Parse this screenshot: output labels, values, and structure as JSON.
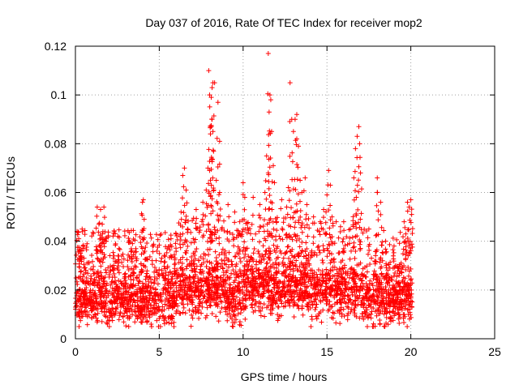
{
  "chart_data": {
    "type": "scatter",
    "title": "Day 037 of 2016, Rate Of TEC Index for receiver mop2",
    "xlabel": "GPS time / hours",
    "ylabel": "ROTI / TECUs",
    "xlim": [
      0,
      25
    ],
    "ylim": [
      0,
      0.12
    ],
    "grid": true,
    "marker": "+",
    "color": "#ff0000",
    "x_ticks": [
      "0",
      "5",
      "10",
      "15",
      "20",
      "25"
    ],
    "y_ticks": [
      "0",
      "0.02",
      "0.04",
      "0.06",
      "0.08",
      "0.1",
      "0.12"
    ],
    "series": [
      {
        "name": "ROTI",
        "base_band": {
          "x_range": [
            0,
            20.1
          ],
          "typical_y_range": [
            0.006,
            0.03
          ],
          "note": "dense cloud of ~0.01-0.025 values throughout the observation period"
        },
        "points": [
          [
            0.1,
            0.044
          ],
          [
            0.2,
            0.041
          ],
          [
            0.25,
            0.036
          ],
          [
            0.3,
            0.035
          ],
          [
            0.4,
            0.045
          ],
          [
            1.3,
            0.054
          ],
          [
            1.4,
            0.047
          ],
          [
            1.5,
            0.053
          ],
          [
            1.6,
            0.047
          ],
          [
            1.7,
            0.054
          ],
          [
            1.5,
            0.041
          ],
          [
            1.7,
            0.039
          ],
          [
            2.3,
            0.034
          ],
          [
            2.6,
            0.037
          ],
          [
            3.4,
            0.039
          ],
          [
            3.6,
            0.037
          ],
          [
            4.0,
            0.056
          ],
          [
            4.05,
            0.057
          ],
          [
            4.1,
            0.049
          ],
          [
            4.6,
            0.038
          ],
          [
            5.7,
            0.041
          ],
          [
            6.0,
            0.043
          ],
          [
            6.3,
            0.052
          ],
          [
            6.4,
            0.067
          ],
          [
            6.5,
            0.07
          ],
          [
            6.6,
            0.061
          ],
          [
            6.7,
            0.045
          ],
          [
            7.2,
            0.053
          ],
          [
            7.6,
            0.056
          ],
          [
            7.8,
            0.061
          ],
          [
            7.9,
            0.07
          ],
          [
            8.0,
            0.069
          ],
          [
            8.05,
            0.084
          ],
          [
            8.1,
            0.087
          ],
          [
            8.15,
            0.09
          ],
          [
            8.2,
            0.085
          ],
          [
            8.0,
            0.1
          ],
          [
            8.1,
            0.099
          ],
          [
            8.15,
            0.103
          ],
          [
            8.2,
            0.105
          ],
          [
            7.95,
            0.11
          ],
          [
            8.3,
            0.105
          ],
          [
            8.5,
            0.097
          ],
          [
            8.6,
            0.081
          ],
          [
            8.4,
            0.065
          ],
          [
            8.6,
            0.06
          ],
          [
            9.1,
            0.055
          ],
          [
            9.5,
            0.052
          ],
          [
            9.8,
            0.048
          ],
          [
            10.0,
            0.064
          ],
          [
            10.1,
            0.058
          ],
          [
            10.6,
            0.058
          ],
          [
            11.0,
            0.055
          ],
          [
            11.3,
            0.06
          ],
          [
            11.4,
            0.075
          ],
          [
            11.5,
            0.068
          ],
          [
            11.55,
            0.093
          ],
          [
            11.6,
            0.1
          ],
          [
            11.65,
            0.098
          ],
          [
            11.5,
            0.117
          ],
          [
            11.7,
            0.085
          ],
          [
            11.8,
            0.071
          ],
          [
            12.0,
            0.048
          ],
          [
            12.3,
            0.057
          ],
          [
            12.6,
            0.054
          ],
          [
            12.7,
            0.062
          ],
          [
            12.8,
            0.105
          ],
          [
            12.9,
            0.09
          ],
          [
            13.0,
            0.085
          ],
          [
            13.1,
            0.09
          ],
          [
            13.2,
            0.092
          ],
          [
            13.2,
            0.082
          ],
          [
            13.3,
            0.079
          ],
          [
            13.4,
            0.065
          ],
          [
            13.5,
            0.06
          ],
          [
            13.7,
            0.066
          ],
          [
            13.8,
            0.055
          ],
          [
            14.2,
            0.05
          ],
          [
            14.6,
            0.048
          ],
          [
            14.8,
            0.053
          ],
          [
            15.0,
            0.059
          ],
          [
            15.1,
            0.069
          ],
          [
            15.2,
            0.063
          ],
          [
            15.3,
            0.05
          ],
          [
            16.0,
            0.048
          ],
          [
            16.4,
            0.045
          ],
          [
            16.6,
            0.066
          ],
          [
            16.7,
            0.078
          ],
          [
            16.8,
            0.083
          ],
          [
            16.9,
            0.087
          ],
          [
            16.95,
            0.08
          ],
          [
            17.0,
            0.068
          ],
          [
            16.75,
            0.058
          ],
          [
            17.5,
            0.045
          ],
          [
            18.0,
            0.066
          ],
          [
            18.0,
            0.06
          ],
          [
            18.2,
            0.056
          ],
          [
            18.5,
            0.04
          ],
          [
            19.0,
            0.038
          ],
          [
            19.6,
            0.048
          ],
          [
            19.8,
            0.056
          ],
          [
            19.9,
            0.054
          ],
          [
            20.0,
            0.057
          ],
          [
            20.05,
            0.051
          ],
          [
            19.7,
            0.043
          ]
        ]
      }
    ]
  }
}
